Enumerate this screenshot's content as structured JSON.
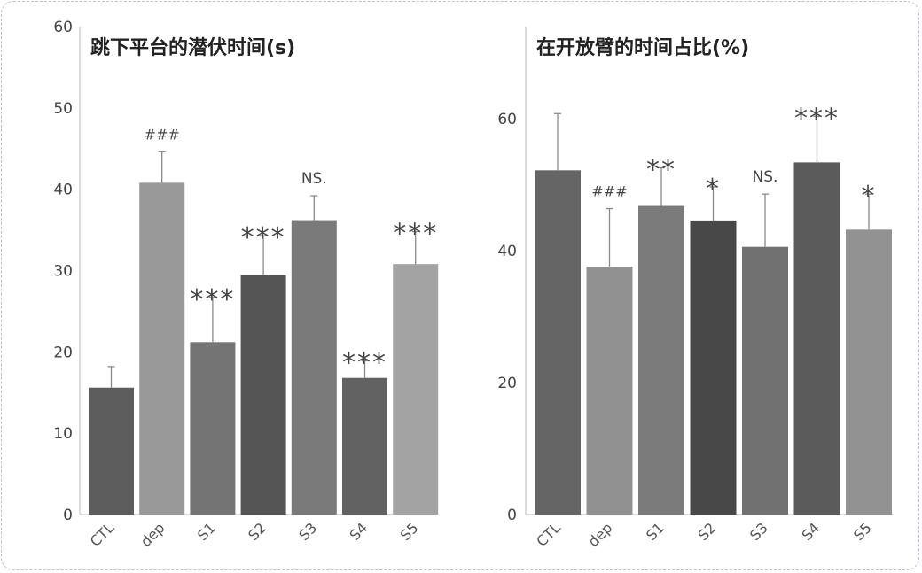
{
  "chart_data": [
    {
      "type": "bar",
      "title": "跳下平台的潜伏时间(s)",
      "categories": [
        "CTL",
        "dep",
        "S1",
        "S2",
        "S3",
        "S4",
        "S5"
      ],
      "values": [
        15.6,
        40.8,
        21.2,
        29.5,
        36.2,
        16.8,
        30.8
      ],
      "errors": [
        2.6,
        3.8,
        5.5,
        4.8,
        3.0,
        2.1,
        4.0
      ],
      "annotations": [
        "",
        "###",
        "***",
        "***",
        "NS.",
        "***",
        "***"
      ],
      "bar_colors": [
        "#5d5d5d",
        "#999999",
        "#747474",
        "#555555",
        "#7a7a7a",
        "#626262",
        "#a3a3a3"
      ],
      "yticks": [
        0,
        10,
        20,
        30,
        40,
        50,
        60
      ],
      "ylim": [
        0,
        60
      ],
      "grid": false
    },
    {
      "type": "bar",
      "title": "在开放臂的时间占比(%)",
      "categories": [
        "CTL",
        "dep",
        "S1",
        "S2",
        "S3",
        "S4",
        "S5"
      ],
      "values": [
        52.2,
        37.6,
        46.8,
        44.6,
        40.6,
        53.4,
        43.2
      ],
      "errors": [
        8.6,
        8.8,
        5.8,
        5.1,
        8.0,
        7.0,
        5.4
      ],
      "annotations": [
        "",
        "###",
        "**",
        "*",
        "NS.",
        "***",
        "*"
      ],
      "bar_colors": [
        "#656565",
        "#919191",
        "#7b7b7b",
        "#484848",
        "#717171",
        "#5b5b5b",
        "#929292"
      ],
      "yticks": [
        0,
        20,
        40,
        60
      ],
      "ylim": [
        0,
        74
      ],
      "grid": false
    }
  ]
}
